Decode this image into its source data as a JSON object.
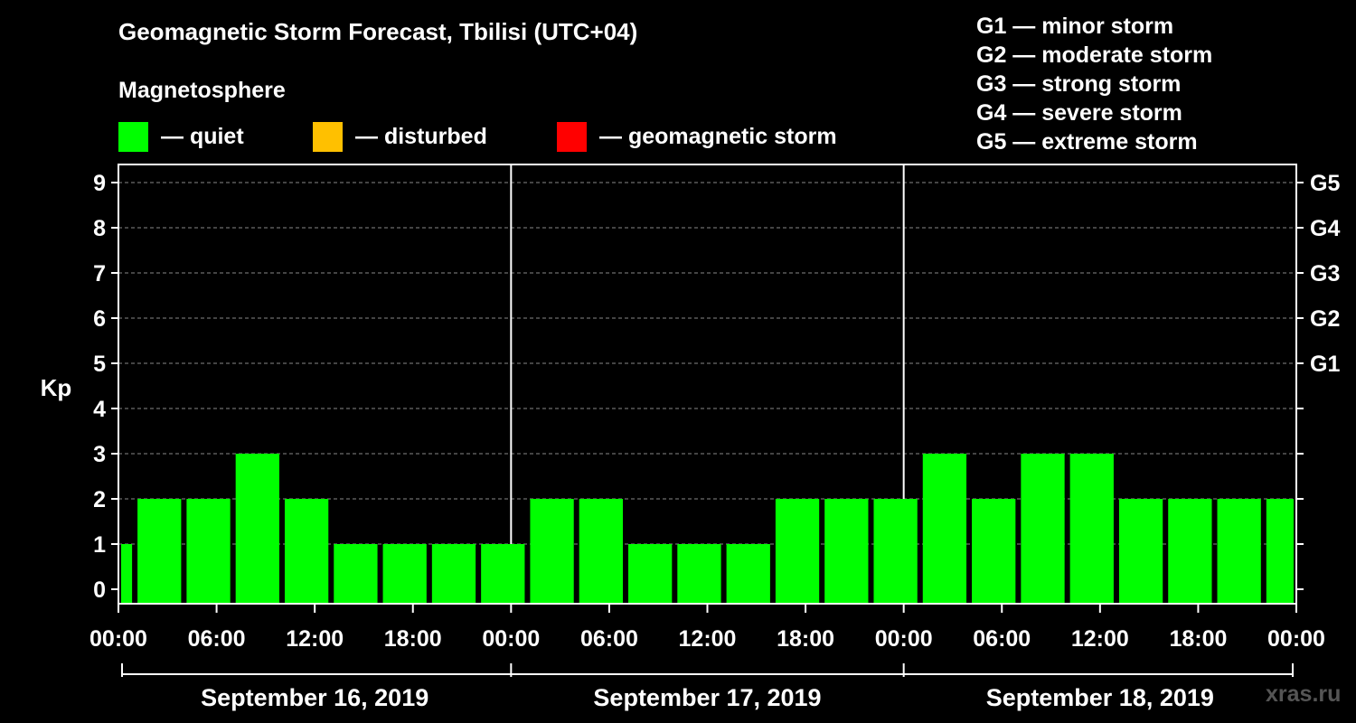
{
  "header": {
    "title": "Geomagnetic Storm Forecast, Tbilisi (UTC+04)",
    "subtitle": "Magnetosphere"
  },
  "legend": [
    {
      "label": "— quiet",
      "color": "#00ff00"
    },
    {
      "label": "— disturbed",
      "color": "#ffc000"
    },
    {
      "label": "— geomagnetic storm",
      "color": "#ff0000"
    }
  ],
  "storm_scale": [
    "G1 — minor storm",
    "G2 — moderate storm",
    "G3 — strong storm",
    "G4 — severe storm",
    "G5 — extreme storm"
  ],
  "watermark": "xras.ru",
  "chart_data": {
    "type": "bar",
    "title": "Geomagnetic Storm Forecast, Tbilisi (UTC+04)",
    "ylabel": "Kp",
    "ylim": [
      0,
      9
    ],
    "yticks": [
      0,
      1,
      2,
      3,
      4,
      5,
      6,
      7,
      8,
      9
    ],
    "right_axis_labels": [
      {
        "kp": 5,
        "label": "G1"
      },
      {
        "kp": 6,
        "label": "G2"
      },
      {
        "kp": 7,
        "label": "G3"
      },
      {
        "kp": 8,
        "label": "G4"
      },
      {
        "kp": 9,
        "label": "G5"
      }
    ],
    "x_tick_labels": [
      "00:00",
      "06:00",
      "12:00",
      "18:00",
      "00:00",
      "06:00",
      "12:00",
      "18:00",
      "00:00",
      "06:00",
      "12:00",
      "18:00",
      "00:00"
    ],
    "days": [
      "September 16, 2019",
      "September 17, 2019",
      "September 18, 2019"
    ],
    "interval_hours": 3,
    "bar_start_hours": [
      0,
      1,
      4,
      7,
      10,
      13,
      16,
      19,
      22,
      25,
      28,
      31,
      34,
      37,
      40,
      43,
      46,
      49,
      52,
      55,
      58,
      61,
      64,
      67,
      70
    ],
    "bar_end_hours": [
      1,
      4,
      7,
      10,
      13,
      16,
      19,
      22,
      25,
      28,
      31,
      34,
      37,
      40,
      43,
      46,
      49,
      52,
      55,
      58,
      61,
      64,
      67,
      70,
      72
    ],
    "values": [
      1,
      2,
      2,
      3,
      2,
      1,
      1,
      1,
      1,
      2,
      2,
      1,
      1,
      1,
      2,
      2,
      2,
      3,
      2,
      3,
      3,
      2,
      2,
      2,
      2
    ],
    "bar_color": "#00ff00",
    "grid": true
  }
}
